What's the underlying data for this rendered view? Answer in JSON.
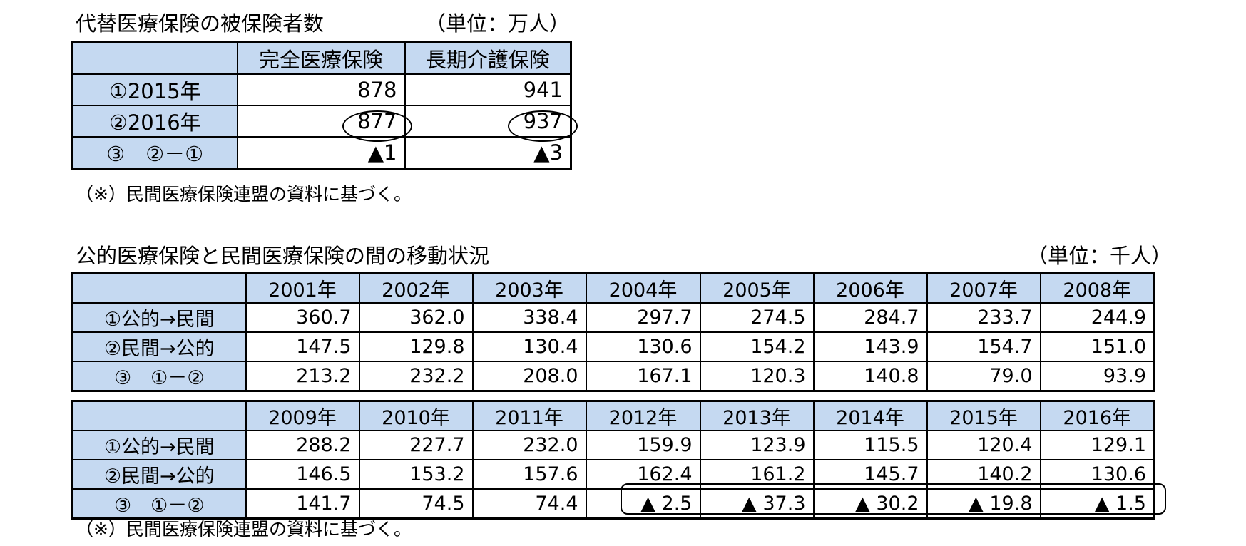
{
  "top": {
    "title": "代替医療保険の被保険者数",
    "unit": "（単位：万人）",
    "columns": [
      "完全医療保険",
      "長期介護保険"
    ],
    "rows": [
      {
        "label": "①2015年",
        "values": [
          "878",
          "941"
        ]
      },
      {
        "label": "②2016年",
        "values": [
          "877",
          "937"
        ]
      },
      {
        "label": "③　②－①",
        "values": [
          "▲1",
          "▲3"
        ]
      }
    ],
    "note": "（※）民間医療保険連盟の資料に基づく。"
  },
  "bottom": {
    "title": "公的医療保険と民間医療保険の間の移動状況",
    "unit": "（単位：千人）",
    "row_labels": [
      "①公的→民間",
      "②民間→公的",
      "③　①－②"
    ],
    "part1": {
      "years": [
        "2001年",
        "2002年",
        "2003年",
        "2004年",
        "2005年",
        "2006年",
        "2007年",
        "2008年"
      ],
      "rows": [
        [
          "360.7",
          "362.0",
          "338.4",
          "297.7",
          "274.5",
          "284.7",
          "233.7",
          "244.9"
        ],
        [
          "147.5",
          "129.8",
          "130.4",
          "130.6",
          "154.2",
          "143.9",
          "154.7",
          "151.0"
        ],
        [
          "213.2",
          "232.2",
          "208.0",
          "167.1",
          "120.3",
          "140.8",
          "79.0",
          "93.9"
        ]
      ]
    },
    "part2": {
      "years": [
        "2009年",
        "2010年",
        "2011年",
        "2012年",
        "2013年",
        "2014年",
        "2015年",
        "2016年"
      ],
      "rows": [
        [
          "288.2",
          "227.7",
          "232.0",
          "159.9",
          "123.9",
          "115.5",
          "120.4",
          "129.1"
        ],
        [
          "146.5",
          "153.2",
          "157.6",
          "162.4",
          "161.2",
          "145.7",
          "140.2",
          "130.6"
        ],
        [
          "141.7",
          "74.5",
          "74.4",
          "▲ 2.5",
          "▲ 37.3",
          "▲ 30.2",
          "▲ 19.8",
          "▲ 1.5"
        ]
      ]
    },
    "note": "（※）民間医療保険連盟の資料に基づく。"
  }
}
